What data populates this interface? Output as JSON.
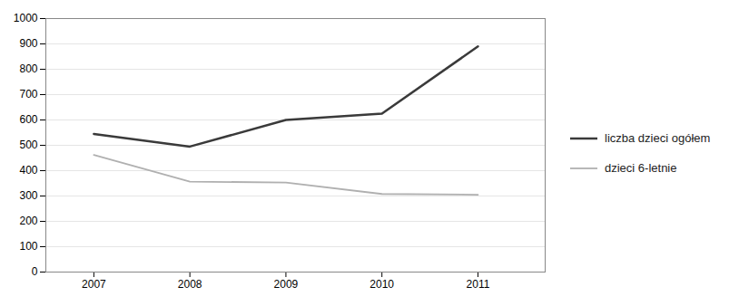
{
  "chart_data": {
    "type": "line",
    "x": [
      2007,
      2008,
      2009,
      2010,
      2011
    ],
    "series": [
      {
        "name": "liczba dzieci ogółem",
        "color": "#3a3a3a",
        "values": [
          545,
          495,
          600,
          625,
          890
        ]
      },
      {
        "name": "dzieci 6-letnie",
        "color": "#b0b0b0",
        "values": [
          462,
          357,
          353,
          308,
          305
        ]
      }
    ],
    "xlim": [
      2006.5,
      2011.7
    ],
    "xticks": [
      2007,
      2008,
      2009,
      2010,
      2011
    ],
    "ylim": [
      0,
      1000
    ],
    "yticks": [
      0,
      100,
      200,
      300,
      400,
      500,
      600,
      700,
      800,
      900,
      1000
    ],
    "grid": true,
    "legend": "right"
  }
}
